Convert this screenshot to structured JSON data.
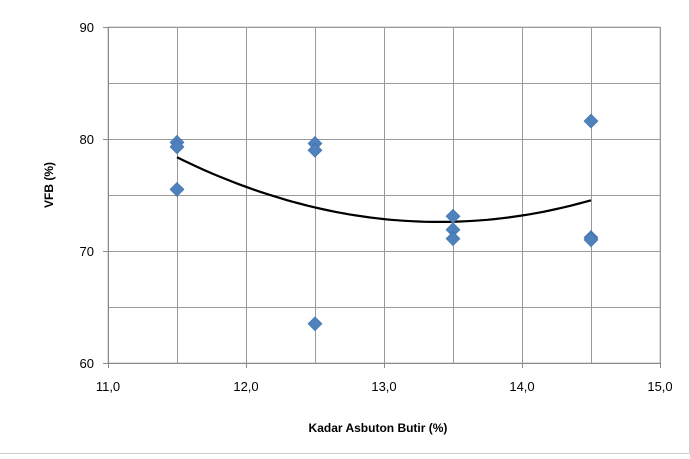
{
  "chart_data": {
    "type": "scatter",
    "title": "",
    "xlabel": "Kadar Asbuton Butir (%)",
    "ylabel": "VFB (%)",
    "xlim": [
      11.0,
      15.0
    ],
    "ylim": [
      60,
      90
    ],
    "x_ticks": [
      "11,0",
      "12,0",
      "13,0",
      "14,0",
      "15,0"
    ],
    "y_ticks": [
      "60",
      "70",
      "80",
      "90"
    ],
    "grid": true,
    "legend": "none",
    "series": [
      {
        "marker": "diamond",
        "color": "#4F81BD",
        "points": [
          {
            "x": 11.5,
            "y": 79.7
          },
          {
            "x": 11.5,
            "y": 79.3
          },
          {
            "x": 11.5,
            "y": 75.5
          },
          {
            "x": 12.5,
            "y": 79.6
          },
          {
            "x": 12.5,
            "y": 79.0
          },
          {
            "x": 12.5,
            "y": 63.5
          },
          {
            "x": 13.5,
            "y": 73.1
          },
          {
            "x": 13.5,
            "y": 71.9
          },
          {
            "x": 13.5,
            "y": 71.1
          },
          {
            "x": 14.5,
            "y": 81.6
          },
          {
            "x": 14.5,
            "y": 71.2
          },
          {
            "x": 14.5,
            "y": 71.0
          }
        ]
      }
    ],
    "trendline": {
      "type": "polynomial",
      "order": 2,
      "color": "#000000",
      "x_range": [
        11.5,
        14.5
      ],
      "points": [
        {
          "x": 11.5,
          "y": 78.3
        },
        {
          "x": 12.5,
          "y": 74.1
        },
        {
          "x": 13.5,
          "y": 72.4
        },
        {
          "x": 14.5,
          "y": 74.6
        }
      ]
    }
  }
}
